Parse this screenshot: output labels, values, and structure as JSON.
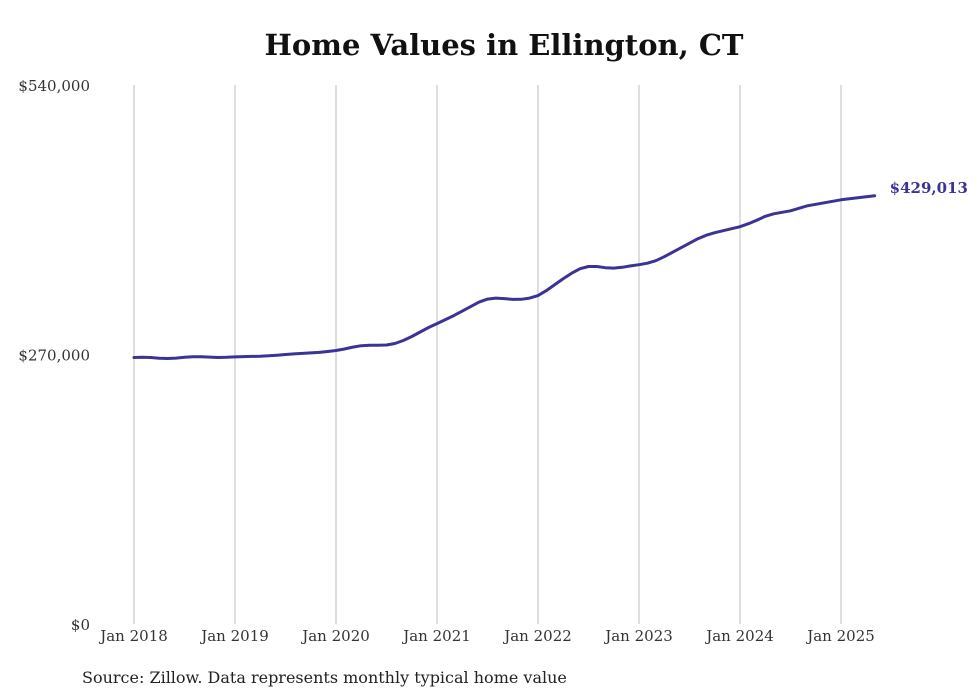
{
  "chart_data": {
    "type": "line",
    "title": "Home Values in Ellington, CT",
    "xlabel": "",
    "ylabel": "",
    "x_ticks": [
      "Jan 2018",
      "Jan 2019",
      "Jan 2020",
      "Jan 2021",
      "Jan 2022",
      "Jan 2023",
      "Jan 2024",
      "Jan 2025"
    ],
    "y_ticks": [
      "$0",
      "$270,000",
      "$540,000"
    ],
    "xlim": [
      "2018-01",
      "2025-05"
    ],
    "ylim": [
      0,
      540000
    ],
    "grid": "vertical",
    "series": [
      {
        "color": "#3b3395",
        "end_label": "$429,013",
        "points": [
          [
            "2018-01",
            267000
          ],
          [
            "2018-02",
            267300
          ],
          [
            "2018-03",
            267000
          ],
          [
            "2018-04",
            266200
          ],
          [
            "2018-05",
            266000
          ],
          [
            "2018-06",
            266400
          ],
          [
            "2018-07",
            267200
          ],
          [
            "2018-08",
            267800
          ],
          [
            "2018-09",
            267800
          ],
          [
            "2018-10",
            267400
          ],
          [
            "2018-11",
            267000
          ],
          [
            "2018-12",
            267200
          ],
          [
            "2019-01",
            267600
          ],
          [
            "2019-02",
            267900
          ],
          [
            "2019-03",
            268100
          ],
          [
            "2019-04",
            268300
          ],
          [
            "2019-05",
            268700
          ],
          [
            "2019-06",
            269300
          ],
          [
            "2019-07",
            270000
          ],
          [
            "2019-08",
            270600
          ],
          [
            "2019-09",
            271100
          ],
          [
            "2019-10",
            271600
          ],
          [
            "2019-11",
            272100
          ],
          [
            "2019-12",
            273000
          ],
          [
            "2020-01",
            274000
          ],
          [
            "2020-02",
            275500
          ],
          [
            "2020-03",
            277400
          ],
          [
            "2020-04",
            278800
          ],
          [
            "2020-05",
            279300
          ],
          [
            "2020-06",
            279300
          ],
          [
            "2020-07",
            279500
          ],
          [
            "2020-08",
            281000
          ],
          [
            "2020-09",
            284000
          ],
          [
            "2020-10",
            288000
          ],
          [
            "2020-11",
            292500
          ],
          [
            "2020-12",
            297000
          ],
          [
            "2021-01",
            301000
          ],
          [
            "2021-02",
            305000
          ],
          [
            "2021-03",
            309000
          ],
          [
            "2021-04",
            313500
          ],
          [
            "2021-05",
            318000
          ],
          [
            "2021-06",
            322500
          ],
          [
            "2021-07",
            325500
          ],
          [
            "2021-08",
            326500
          ],
          [
            "2021-09",
            326000
          ],
          [
            "2021-10",
            325200
          ],
          [
            "2021-11",
            325300
          ],
          [
            "2021-12",
            326500
          ],
          [
            "2022-01",
            329000
          ],
          [
            "2022-02",
            334000
          ],
          [
            "2022-03",
            340000
          ],
          [
            "2022-04",
            346000
          ],
          [
            "2022-05",
            351500
          ],
          [
            "2022-06",
            356000
          ],
          [
            "2022-07",
            358200
          ],
          [
            "2022-08",
            358200
          ],
          [
            "2022-09",
            357000
          ],
          [
            "2022-10",
            356600
          ],
          [
            "2022-11",
            357400
          ],
          [
            "2022-12",
            358800
          ],
          [
            "2023-01",
            360000
          ],
          [
            "2023-02",
            361500
          ],
          [
            "2023-03",
            364000
          ],
          [
            "2023-04",
            368000
          ],
          [
            "2023-05",
            372500
          ],
          [
            "2023-06",
            377000
          ],
          [
            "2023-07",
            381500
          ],
          [
            "2023-08",
            386000
          ],
          [
            "2023-09",
            389500
          ],
          [
            "2023-10",
            392000
          ],
          [
            "2023-11",
            394000
          ],
          [
            "2023-12",
            396000
          ],
          [
            "2024-01",
            398000
          ],
          [
            "2024-02",
            401000
          ],
          [
            "2024-03",
            404500
          ],
          [
            "2024-04",
            408500
          ],
          [
            "2024-05",
            411000
          ],
          [
            "2024-06",
            412500
          ],
          [
            "2024-07",
            414000
          ],
          [
            "2024-08",
            416500
          ],
          [
            "2024-09",
            419000
          ],
          [
            "2024-10",
            420500
          ],
          [
            "2024-11",
            422000
          ],
          [
            "2024-12",
            423500
          ],
          [
            "2025-01",
            425000
          ],
          [
            "2025-02",
            426000
          ],
          [
            "2025-03",
            427000
          ],
          [
            "2025-04",
            428000
          ],
          [
            "2025-05",
            429013
          ]
        ]
      }
    ]
  },
  "source_note": "Source: Zillow. Data represents monthly typical home value"
}
